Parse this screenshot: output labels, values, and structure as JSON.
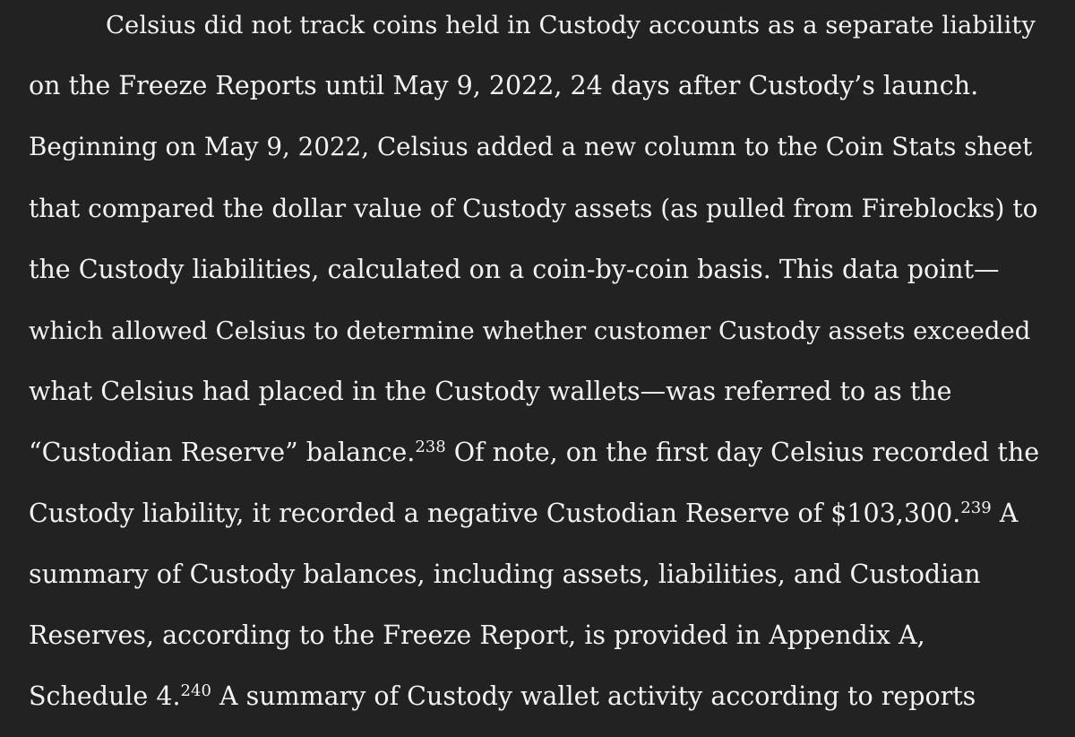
{
  "paragraph": {
    "lines": [
      {
        "text": "Celsius did not track coins held in Custody accounts as a separate liability"
      },
      {
        "text": "on the Freeze Reports until May 9, 2022, 24 days after Custody’s launch."
      },
      {
        "text": "Beginning on May 9, 2022, Celsius added a new column to the Coin Stats sheet"
      },
      {
        "text": "that compared the dollar value of Custody assets (as pulled from Fireblocks) to"
      },
      {
        "text": "the Custody liabilities, calculated on a coin-by-coin basis. This data point—"
      },
      {
        "text": "which allowed Celsius to determine whether customer Custody assets exceeded"
      },
      {
        "text": "what Celsius had placed in the Custody wallets—was referred to as the"
      },
      {
        "text": "“Custodian Reserve” balance.",
        "footnote": "238",
        "after": " Of note, on the first day Celsius recorded the"
      },
      {
        "text": "Custody liability, it recorded a negative Custodian Reserve of $103,300.",
        "footnote": "239",
        "after": " A"
      },
      {
        "text": "summary of Custody balances, including assets, liabilities, and Custodian"
      },
      {
        "text": "Reserves, according to the Freeze Report, is provided in Appendix A,"
      },
      {
        "text": "Schedule 4.",
        "footnote": "240",
        "after": " A summary of Custody wallet activity according to reports"
      }
    ]
  }
}
